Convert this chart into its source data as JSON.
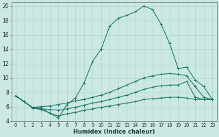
{
  "xlabel": "Humidex (Indice chaleur)",
  "bg_color": "#cbe8e3",
  "grid_color": "#b0d5cc",
  "line_color": "#1e7a6a",
  "xlim": [
    -0.5,
    23.5
  ],
  "ylim": [
    4,
    20.5
  ],
  "xticks": [
    0,
    1,
    2,
    3,
    4,
    5,
    6,
    7,
    8,
    9,
    10,
    11,
    12,
    13,
    14,
    15,
    16,
    17,
    18,
    19,
    20,
    21,
    22,
    23
  ],
  "yticks": [
    4,
    6,
    8,
    10,
    12,
    14,
    16,
    18,
    20
  ],
  "series1": [
    [
      0,
      7.5
    ],
    [
      1,
      6.7
    ],
    [
      2,
      5.8
    ],
    [
      3,
      5.8
    ],
    [
      4,
      5.1
    ],
    [
      5,
      4.4
    ],
    [
      6,
      6.3
    ],
    [
      7,
      7.2
    ],
    [
      8,
      9.3
    ],
    [
      9,
      12.3
    ],
    [
      10,
      14.0
    ],
    [
      11,
      17.2
    ],
    [
      12,
      18.3
    ],
    [
      13,
      18.7
    ],
    [
      14,
      19.2
    ],
    [
      15,
      20.0
    ],
    [
      16,
      19.5
    ],
    [
      17,
      17.5
    ],
    [
      18,
      14.8
    ],
    [
      19,
      11.3
    ],
    [
      20,
      11.5
    ],
    [
      21,
      9.7
    ],
    [
      22,
      8.8
    ],
    [
      23,
      7.0
    ]
  ],
  "series2": [
    [
      0,
      7.5
    ],
    [
      1,
      6.7
    ],
    [
      2,
      5.9
    ],
    [
      3,
      6.0
    ],
    [
      4,
      6.1
    ],
    [
      5,
      6.3
    ],
    [
      6,
      6.5
    ],
    [
      7,
      6.8
    ],
    [
      8,
      7.0
    ],
    [
      9,
      7.3
    ],
    [
      10,
      7.6
    ],
    [
      11,
      8.0
    ],
    [
      12,
      8.5
    ],
    [
      13,
      9.0
    ],
    [
      14,
      9.5
    ],
    [
      15,
      10.0
    ],
    [
      16,
      10.3
    ],
    [
      17,
      10.5
    ],
    [
      18,
      10.6
    ],
    [
      19,
      10.5
    ],
    [
      20,
      10.3
    ],
    [
      21,
      8.8
    ],
    [
      22,
      7.3
    ],
    [
      23,
      7.0
    ]
  ],
  "series3": [
    [
      0,
      7.5
    ],
    [
      1,
      6.7
    ],
    [
      2,
      5.8
    ],
    [
      3,
      5.7
    ],
    [
      4,
      5.6
    ],
    [
      5,
      5.5
    ],
    [
      6,
      5.7
    ],
    [
      7,
      5.9
    ],
    [
      8,
      6.2
    ],
    [
      9,
      6.5
    ],
    [
      10,
      6.7
    ],
    [
      11,
      7.0
    ],
    [
      12,
      7.3
    ],
    [
      13,
      7.6
    ],
    [
      14,
      8.0
    ],
    [
      15,
      8.4
    ],
    [
      16,
      8.7
    ],
    [
      17,
      8.9
    ],
    [
      18,
      9.0
    ],
    [
      19,
      9.0
    ],
    [
      20,
      9.5
    ],
    [
      21,
      7.3
    ],
    [
      22,
      7.0
    ],
    [
      23,
      7.0
    ]
  ],
  "series4": [
    [
      0,
      7.5
    ],
    [
      1,
      6.7
    ],
    [
      2,
      5.8
    ],
    [
      3,
      5.6
    ],
    [
      4,
      5.1
    ],
    [
      5,
      4.7
    ],
    [
      6,
      5.0
    ],
    [
      7,
      5.2
    ],
    [
      8,
      5.5
    ],
    [
      9,
      5.7
    ],
    [
      10,
      5.9
    ],
    [
      11,
      6.1
    ],
    [
      12,
      6.3
    ],
    [
      13,
      6.5
    ],
    [
      14,
      6.7
    ],
    [
      15,
      7.0
    ],
    [
      16,
      7.1
    ],
    [
      17,
      7.2
    ],
    [
      18,
      7.3
    ],
    [
      19,
      7.3
    ],
    [
      20,
      7.2
    ],
    [
      21,
      7.0
    ],
    [
      22,
      7.0
    ],
    [
      23,
      7.0
    ]
  ]
}
